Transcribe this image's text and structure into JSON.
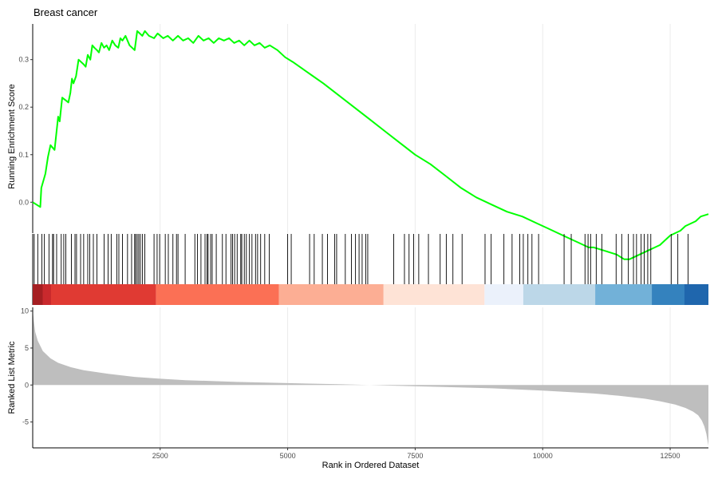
{
  "chart_data": {
    "type": "line",
    "title": "Breast cancer",
    "xlabel": "Rank in Ordered Dataset",
    "ylabel_top": "Running Enrichment Score",
    "ylabel_bottom": "Ranked List Metric",
    "xlim": [
      1,
      13250
    ],
    "x_ticks": [
      2500,
      5000,
      7500,
      10000,
      12500
    ],
    "x_tick_labels": [
      "2500",
      "5000",
      "7500",
      "10000",
      "12500"
    ],
    "es_ylim": [
      -0.065,
      0.375
    ],
    "es_y_ticks": [
      0.0,
      0.1,
      0.2,
      0.3
    ],
    "es_y_tick_labels": [
      "0.0",
      "0.1",
      "0.2",
      "0.3"
    ],
    "metric_ylim": [
      -8.5,
      10.5
    ],
    "metric_y_ticks": [
      -5,
      0,
      5,
      10
    ],
    "metric_y_tick_labels": [
      "-5",
      "0",
      "5",
      "10"
    ],
    "line_color": "#00ff00",
    "metric_fill_color": "#bebebe",
    "grid": true,
    "series": [
      {
        "x": [
          0,
          150,
          170,
          250,
          300,
          350,
          430,
          500,
          530,
          560,
          580,
          640,
          700,
          740,
          770,
          800,
          850,
          900,
          1000,
          1040,
          1080,
          1130,
          1170,
          1210,
          1260,
          1300,
          1350,
          1400,
          1450,
          1500,
          1560,
          1620,
          1680,
          1720,
          1760,
          1820,
          1900,
          2000,
          2050,
          2100,
          2150,
          2200,
          2280,
          2380,
          2450,
          2560,
          2650,
          2750,
          2850,
          2950,
          3050,
          3150,
          3250,
          3350,
          3450,
          3550,
          3650,
          3750,
          3850,
          3950,
          4050,
          4150,
          4250,
          4350,
          4450,
          4550,
          4650,
          4800,
          4950,
          5100,
          5300,
          5500,
          5700,
          6000,
          6300,
          6600,
          6900,
          7200,
          7500,
          7800,
          8100,
          8400,
          8700,
          9000,
          9300,
          9600,
          9900,
          10100,
          10300,
          10500,
          10700,
          10800,
          10900,
          11000,
          11150,
          11300,
          11450,
          11600,
          11700,
          11800,
          11900,
          12000,
          12100,
          12200,
          12300,
          12400,
          12500,
          12600,
          12700,
          12800,
          12900,
          13000,
          13100,
          13250
        ],
        "y": [
          0.0,
          -0.01,
          0.03,
          0.06,
          0.095,
          0.12,
          0.11,
          0.18,
          0.17,
          0.2,
          0.22,
          0.215,
          0.21,
          0.23,
          0.26,
          0.25,
          0.265,
          0.3,
          0.29,
          0.285,
          0.31,
          0.3,
          0.33,
          0.325,
          0.32,
          0.315,
          0.335,
          0.325,
          0.33,
          0.32,
          0.34,
          0.33,
          0.325,
          0.345,
          0.34,
          0.35,
          0.33,
          0.32,
          0.36,
          0.355,
          0.35,
          0.36,
          0.35,
          0.345,
          0.355,
          0.345,
          0.35,
          0.34,
          0.35,
          0.34,
          0.345,
          0.335,
          0.35,
          0.34,
          0.345,
          0.335,
          0.345,
          0.34,
          0.345,
          0.335,
          0.34,
          0.33,
          0.34,
          0.33,
          0.335,
          0.325,
          0.33,
          0.32,
          0.305,
          0.295,
          0.28,
          0.265,
          0.25,
          0.225,
          0.2,
          0.175,
          0.15,
          0.125,
          0.1,
          0.08,
          0.055,
          0.03,
          0.01,
          -0.005,
          -0.02,
          -0.03,
          -0.045,
          -0.055,
          -0.065,
          -0.075,
          -0.085,
          -0.09,
          -0.095,
          -0.095,
          -0.1,
          -0.105,
          -0.11,
          -0.12,
          -0.12,
          -0.115,
          -0.11,
          -0.105,
          -0.1,
          -0.095,
          -0.09,
          -0.08,
          -0.07,
          -0.065,
          -0.06,
          -0.05,
          -0.045,
          -0.04,
          -0.03,
          -0.025
        ]
      }
    ],
    "metric": {
      "x": [
        1,
        20,
        50,
        100,
        200,
        350,
        500,
        750,
        1000,
        1500,
        2000,
        2500,
        3000,
        4000,
        5000,
        6000,
        6600,
        7000,
        8000,
        9000,
        10000,
        11000,
        11500,
        12000,
        12300,
        12600,
        12800,
        12950,
        13050,
        13120,
        13170,
        13210,
        13250
      ],
      "y": [
        10.2,
        8.8,
        7.2,
        6.0,
        4.6,
        3.6,
        3.0,
        2.4,
        2.0,
        1.5,
        1.1,
        0.85,
        0.65,
        0.42,
        0.25,
        0.1,
        0.0,
        -0.08,
        -0.25,
        -0.45,
        -0.75,
        -1.15,
        -1.45,
        -1.85,
        -2.2,
        -2.65,
        -3.1,
        -3.6,
        -4.1,
        -4.8,
        -5.6,
        -6.6,
        -8.2
      ]
    },
    "hits": [
      30,
      100,
      180,
      230,
      320,
      390,
      410,
      470,
      560,
      610,
      650,
      760,
      830,
      860,
      940,
      1000,
      1080,
      1120,
      1190,
      1260,
      1400,
      1480,
      1540,
      1650,
      1690,
      1760,
      1860,
      1940,
      2000,
      2020,
      2050,
      2080,
      2110,
      2150,
      2200,
      2380,
      2440,
      2490,
      2600,
      2660,
      2750,
      2820,
      2850,
      2990,
      3180,
      3230,
      3300,
      3380,
      3420,
      3440,
      3490,
      3520,
      3600,
      3720,
      3790,
      3890,
      3920,
      3960,
      4010,
      4080,
      4100,
      4150,
      4190,
      4250,
      4300,
      4370,
      4410,
      4470,
      4550,
      4640,
      5000,
      5070,
      5430,
      5520,
      5680,
      5780,
      5920,
      5960,
      6130,
      6250,
      6330,
      6400,
      6460,
      6530,
      6570,
      7080,
      7290,
      7380,
      7470,
      7570,
      7760,
      7990,
      8110,
      8240,
      8420,
      8870,
      8990,
      9240,
      9400,
      9550,
      9620,
      9710,
      9790,
      9920,
      10420,
      10560,
      10830,
      10890,
      10940,
      11050,
      11160,
      11440,
      11550,
      11680,
      11780,
      11840,
      11930,
      11990,
      12060,
      12120,
      12520,
      12650,
      12850
    ],
    "color_bands": [
      {
        "start": 1,
        "end": 2420,
        "color": "#e03a33"
      },
      {
        "start": 2420,
        "end": 4830,
        "color": "#fb7055"
      },
      {
        "start": 4830,
        "end": 6880,
        "color": "#fcae94"
      },
      {
        "start": 6880,
        "end": 8860,
        "color": "#fee3d6"
      },
      {
        "start": 8860,
        "end": 9620,
        "color": "#ebf1fb"
      },
      {
        "start": 9620,
        "end": 11030,
        "color": "#bcd7e8"
      },
      {
        "start": 11030,
        "end": 12140,
        "color": "#72b1d8"
      },
      {
        "start": 12140,
        "end": 13250,
        "color": "#3482be"
      }
    ],
    "dark_stripes": [
      {
        "start": 1,
        "end": 200,
        "color": "#a51f22"
      },
      {
        "start": 200,
        "end": 360,
        "color": "#c9292d"
      },
      {
        "start": 12780,
        "end": 13250,
        "color": "#1f66ad"
      }
    ]
  }
}
